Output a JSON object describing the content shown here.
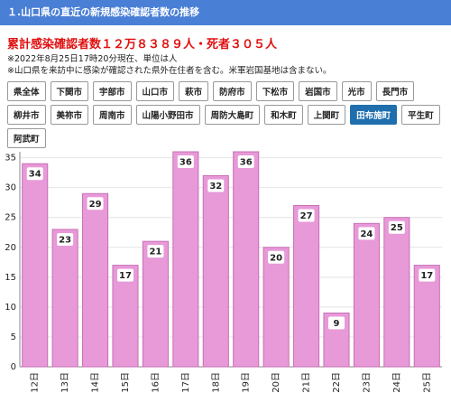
{
  "header": {
    "title": "１.山口県の直近の新規感染確認者数の推移"
  },
  "summary": {
    "total": "累計感染確認者数１２万８３８９人・死者３０５人",
    "notes": [
      "※2022年8月25日17時20分現在、単位は人",
      "※山口県を来訪中に感染が確認された県外在住者を含む。米軍岩国基地は含まない。"
    ]
  },
  "buttons": [
    {
      "label": "県全体"
    },
    {
      "label": "下関市"
    },
    {
      "label": "宇部市"
    },
    {
      "label": "山口市"
    },
    {
      "label": "萩市"
    },
    {
      "label": "防府市"
    },
    {
      "label": "下松市"
    },
    {
      "label": "岩国市"
    },
    {
      "label": "光市"
    },
    {
      "label": "長門市"
    },
    {
      "label": "柳井市"
    },
    {
      "label": "美祢市"
    },
    {
      "label": "周南市"
    },
    {
      "label": "山陽小野田市"
    },
    {
      "label": "周防大島町"
    },
    {
      "label": "和木町"
    },
    {
      "label": "上関町"
    },
    {
      "label": "田布施町",
      "active": true
    },
    {
      "label": "平生町"
    },
    {
      "label": "阿武町"
    }
  ],
  "chart_data": {
    "type": "bar",
    "categories": [
      "12日",
      "13日",
      "14日",
      "15日",
      "16日",
      "17日",
      "18日",
      "19日",
      "20日",
      "21日",
      "22日",
      "23日",
      "24日",
      "25日"
    ],
    "values": [
      34,
      23,
      29,
      17,
      21,
      36,
      32,
      36,
      20,
      27,
      9,
      24,
      25,
      17
    ],
    "color": "#e899d8",
    "ylim": [
      0,
      36
    ],
    "yticks": [
      0,
      5,
      10,
      15,
      20,
      25,
      30,
      35
    ],
    "grid": true
  }
}
